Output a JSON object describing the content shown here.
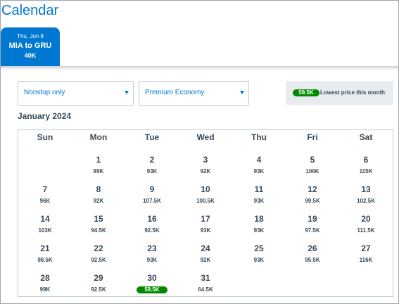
{
  "page": {
    "title": "Calendar"
  },
  "tab": {
    "date": "Thu, Jun 8",
    "route": "MIA to GRU",
    "price": "40K"
  },
  "filters": {
    "stops": "Nonstop only",
    "cabin": "Premium Economy"
  },
  "legend": {
    "badge": "59.5K",
    "label": "Lowest price this month",
    "color": "#008a00"
  },
  "calendar": {
    "month": "January 2024",
    "weekdays": [
      "Sun",
      "Mon",
      "Tue",
      "Wed",
      "Thu",
      "Fri",
      "Sat"
    ],
    "days": [
      {
        "day": "1",
        "price": "89K",
        "weekday": 1,
        "week": 0
      },
      {
        "day": "2",
        "price": "93K",
        "weekday": 2,
        "week": 0
      },
      {
        "day": "3",
        "price": "92K",
        "weekday": 3,
        "week": 0
      },
      {
        "day": "4",
        "price": "93K",
        "weekday": 4,
        "week": 0
      },
      {
        "day": "5",
        "price": "106K",
        "weekday": 5,
        "week": 0
      },
      {
        "day": "6",
        "price": "115K",
        "weekday": 6,
        "week": 0
      },
      {
        "day": "7",
        "price": "96K",
        "weekday": 0,
        "week": 1
      },
      {
        "day": "8",
        "price": "92K",
        "weekday": 1,
        "week": 1
      },
      {
        "day": "9",
        "price": "107.5K",
        "weekday": 2,
        "week": 1
      },
      {
        "day": "10",
        "price": "100.5K",
        "weekday": 3,
        "week": 1
      },
      {
        "day": "11",
        "price": "93K",
        "weekday": 4,
        "week": 1
      },
      {
        "day": "12",
        "price": "99.5K",
        "weekday": 5,
        "week": 1
      },
      {
        "day": "13",
        "price": "102.5K",
        "weekday": 6,
        "week": 1
      },
      {
        "day": "14",
        "price": "103K",
        "weekday": 0,
        "week": 2
      },
      {
        "day": "15",
        "price": "94.5K",
        "weekday": 1,
        "week": 2
      },
      {
        "day": "16",
        "price": "92.5K",
        "weekday": 2,
        "week": 2
      },
      {
        "day": "17",
        "price": "93K",
        "weekday": 3,
        "week": 2
      },
      {
        "day": "18",
        "price": "93K",
        "weekday": 4,
        "week": 2
      },
      {
        "day": "19",
        "price": "97.5K",
        "weekday": 5,
        "week": 2
      },
      {
        "day": "20",
        "price": "111.5K",
        "weekday": 6,
        "week": 2
      },
      {
        "day": "21",
        "price": "98.5K",
        "weekday": 0,
        "week": 3
      },
      {
        "day": "22",
        "price": "92.5K",
        "weekday": 1,
        "week": 3
      },
      {
        "day": "23",
        "price": "93K",
        "weekday": 2,
        "week": 3
      },
      {
        "day": "24",
        "price": "92K",
        "weekday": 3,
        "week": 3
      },
      {
        "day": "25",
        "price": "93K",
        "weekday": 4,
        "week": 3
      },
      {
        "day": "26",
        "price": "95.5K",
        "weekday": 5,
        "week": 3
      },
      {
        "day": "27",
        "price": "116K",
        "weekday": 6,
        "week": 3
      },
      {
        "day": "28",
        "price": "99K",
        "weekday": 0,
        "week": 4
      },
      {
        "day": "29",
        "price": "92.5K",
        "weekday": 1,
        "week": 4
      },
      {
        "day": "30",
        "price": "59.5K",
        "weekday": 2,
        "week": 4,
        "lowest": true
      },
      {
        "day": "31",
        "price": "64.5K",
        "weekday": 3,
        "week": 4
      }
    ]
  }
}
